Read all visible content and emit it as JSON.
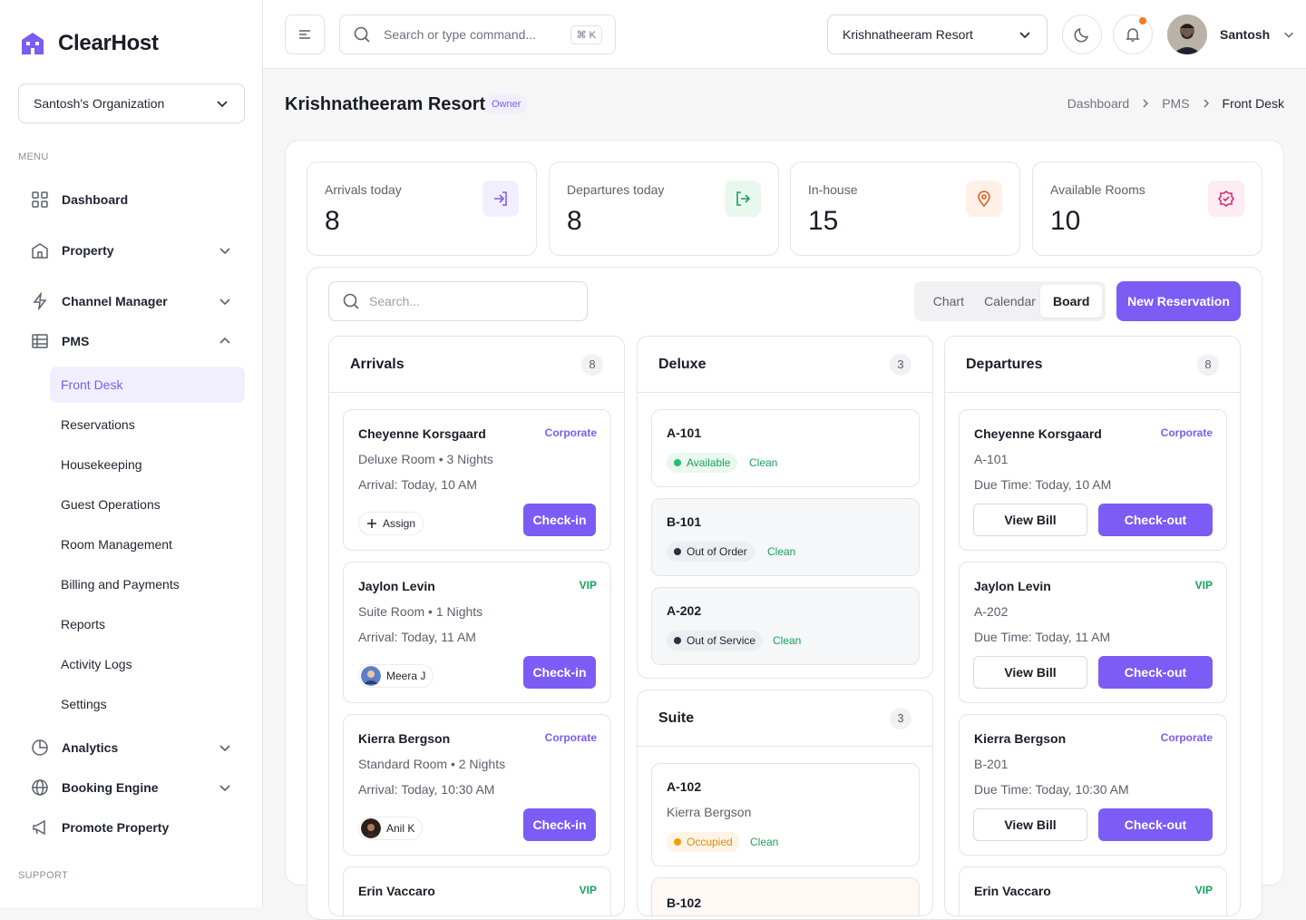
{
  "brand": {
    "name": "ClearHost",
    "accent": "#7b5cf5"
  },
  "sidebar": {
    "org": "Santosh's Organization",
    "menu_label": "MENU",
    "support_label": "SUPPORT",
    "items": [
      {
        "label": "Dashboard",
        "icon": "grid-icon"
      },
      {
        "label": "Property",
        "icon": "building-icon"
      },
      {
        "label": "Channel Manager",
        "icon": "lightning-icon"
      },
      {
        "label": "PMS",
        "icon": "table-icon"
      },
      {
        "label": "Analytics",
        "icon": "pie-chart-icon"
      },
      {
        "label": "Booking Engine",
        "icon": "globe-icon"
      },
      {
        "label": "Promote Property",
        "icon": "megaphone-icon"
      }
    ],
    "pms_sub": [
      "Front Desk",
      "Reservations",
      "Housekeeping",
      "Guest Operations",
      "Room Management",
      "Billing and Payments",
      "Reports",
      "Activity Logs",
      "Settings"
    ]
  },
  "topbar": {
    "search_placeholder": "Search or type command...",
    "shortcut": "⌘ K",
    "property": "Krishnatheeram Resort",
    "user": "Santosh"
  },
  "page": {
    "title": "Krishnatheeram Resort",
    "role": "Owner",
    "breadcrumb": [
      "Dashboard",
      "PMS",
      "Front Desk"
    ]
  },
  "stats": [
    {
      "label": "Arrivals today",
      "value": "8"
    },
    {
      "label": "Departures today",
      "value": "8"
    },
    {
      "label": "In-house",
      "value": "15"
    },
    {
      "label": "Available Rooms",
      "value": "10"
    }
  ],
  "board": {
    "search_placeholder": "Search...",
    "views": [
      "Chart",
      "Calendar",
      "Board"
    ],
    "active_view": "Board",
    "new_reservation": "New Reservation"
  },
  "arrivals": {
    "title": "Arrivals",
    "count": "8",
    "cards": [
      {
        "name": "Cheyenne Korsgaard",
        "tag": "Corporate",
        "room": "Deluxe Room • 3 Nights",
        "arrival": "Arrival: Today, 10 AM",
        "assignee": "Assign",
        "action": "Check-in"
      },
      {
        "name": "Jaylon Levin",
        "tag": "VIP",
        "room": "Suite Room • 1 Nights",
        "arrival": "Arrival: Today, 11 AM",
        "assignee": "Meera J",
        "action": "Check-in"
      },
      {
        "name": "Kierra Bergson",
        "tag": "Corporate",
        "room": "Standard Room • 2 Nights",
        "arrival": "Arrival: Today, 10:30 AM",
        "assignee": "Anil K",
        "action": "Check-in"
      },
      {
        "name": "Erin Vaccaro",
        "tag": "VIP"
      }
    ]
  },
  "deluxe": {
    "title": "Deluxe",
    "count": "3",
    "rooms": [
      {
        "room": "A-101",
        "status": "Available",
        "hk": "Clean"
      },
      {
        "room": "B-101",
        "status": "Out of Order",
        "hk": "Clean"
      },
      {
        "room": "A-202",
        "status": "Out of Service",
        "hk": "Clean"
      }
    ]
  },
  "suite": {
    "title": "Suite",
    "count": "3",
    "rooms": [
      {
        "room": "A-102",
        "guest": "Kierra Bergson",
        "status": "Occupied",
        "hk": "Clean"
      },
      {
        "room": "B-102"
      }
    ]
  },
  "departures": {
    "title": "Departures",
    "count": "8",
    "cards": [
      {
        "name": "Cheyenne Korsgaard",
        "tag": "Corporate",
        "room": "A-101",
        "due": "Due Time: Today, 10 AM",
        "bill": "View Bill",
        "action": "Check-out"
      },
      {
        "name": "Jaylon Levin",
        "tag": "VIP",
        "room": "A-202",
        "due": "Due Time: Today, 11 AM",
        "bill": "View Bill",
        "action": "Check-out"
      },
      {
        "name": "Kierra Bergson",
        "tag": "Corporate",
        "room": "B-201",
        "due": "Due Time: Today, 10:30 AM",
        "bill": "View Bill",
        "action": "Check-out"
      },
      {
        "name": "Erin Vaccaro",
        "tag": "VIP"
      }
    ]
  }
}
